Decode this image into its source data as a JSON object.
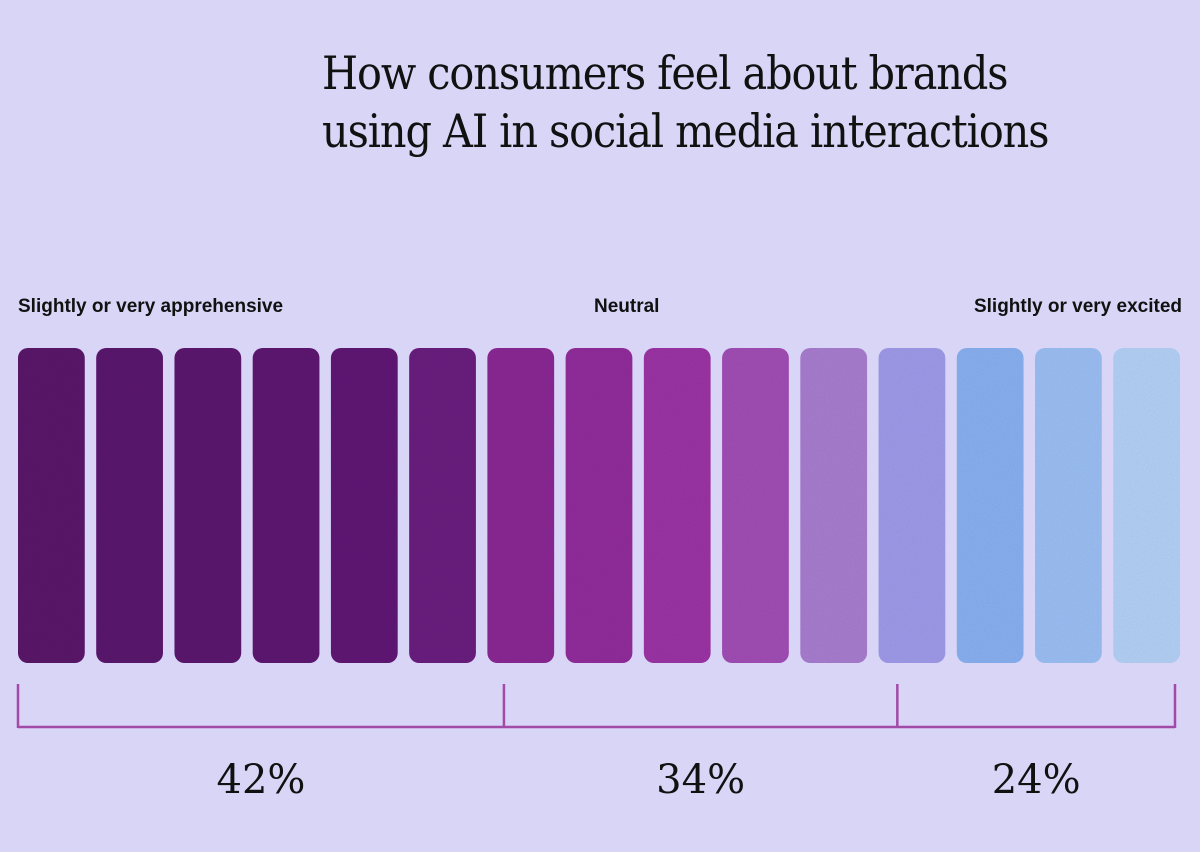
{
  "chart_data": {
    "type": "bar",
    "title": "How consumers feel about brands using AI in social media interactions",
    "categories": [
      "Slightly or very apprehensive",
      "Neutral",
      "Slightly or very excited"
    ],
    "values": [
      42,
      34,
      24
    ],
    "value_labels": [
      "42%",
      "34%",
      "24%"
    ],
    "unit": "%",
    "xlabel": "",
    "ylabel": "",
    "total_blocks": 15,
    "block_colors": [
      "#5b1a6b",
      "#5c1b6e",
      "#5d1c70",
      "#5e1c72",
      "#611e76",
      "#6b2280",
      "#8b2a95",
      "#932d9c",
      "#9c34a6",
      "#a24fb6",
      "#a97ed0",
      "#a09bea",
      "#8ab1f2",
      "#9cc0f5",
      "#b5d2f8"
    ],
    "bracket_color": "#a24aa8",
    "background_color": "#d9d5f7"
  }
}
